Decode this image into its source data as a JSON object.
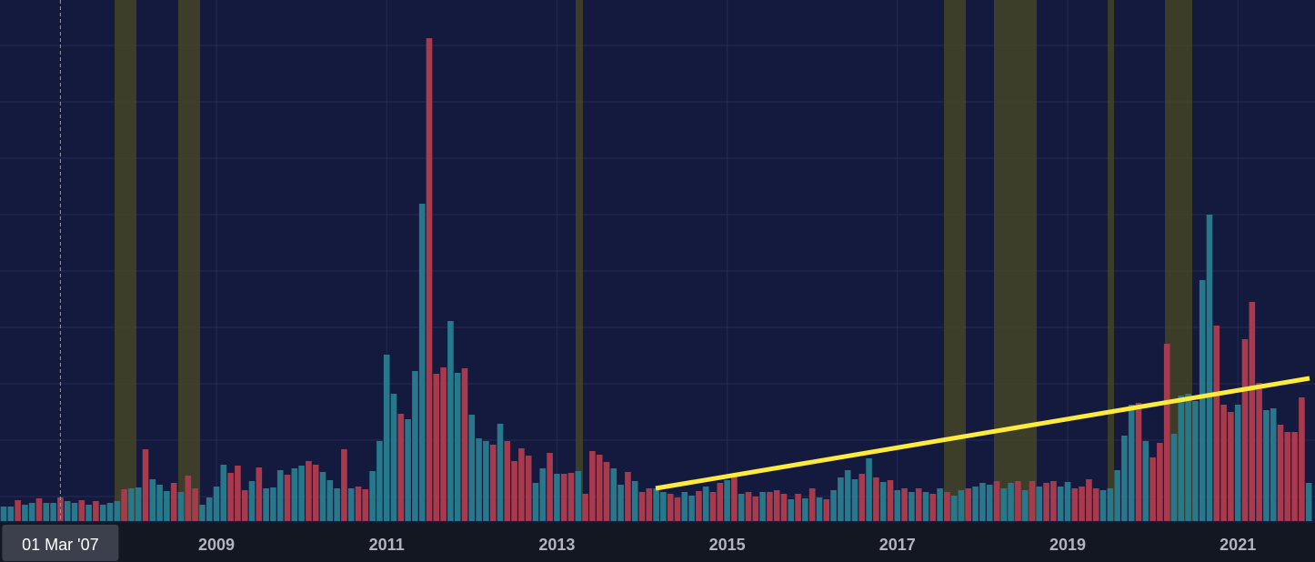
{
  "chart_data": {
    "type": "bar",
    "categories": [
      null,
      null,
      null,
      null,
      null,
      null,
      null,
      null,
      null,
      null,
      null,
      null,
      null,
      null,
      null,
      null,
      null,
      null,
      null,
      null,
      null,
      null,
      null,
      null,
      null,
      null,
      null,
      null,
      null,
      null,
      "2009",
      null,
      null,
      null,
      null,
      null,
      null,
      null,
      null,
      null,
      null,
      null,
      null,
      null,
      null,
      null,
      null,
      null,
      null,
      null,
      null,
      null,
      null,
      null,
      "2011",
      null,
      null,
      null,
      null,
      null,
      null,
      null,
      null,
      null,
      null,
      null,
      null,
      null,
      null,
      null,
      null,
      null,
      null,
      null,
      null,
      null,
      null,
      null,
      "2013",
      null,
      null,
      null,
      null,
      null,
      null,
      null,
      null,
      null,
      null,
      null,
      null,
      null,
      null,
      null,
      null,
      null,
      null,
      null,
      null,
      null,
      null,
      null,
      "2015",
      null,
      null,
      null,
      null,
      null,
      null,
      null,
      null,
      null,
      null,
      null,
      null,
      null,
      null,
      null,
      null,
      null,
      null,
      null,
      null,
      null,
      null,
      null,
      "2017",
      null,
      null,
      null,
      null,
      null,
      null,
      null,
      null,
      null,
      null,
      null,
      null,
      null,
      null,
      null,
      null,
      null,
      null,
      null,
      null,
      null,
      null,
      null,
      "2019",
      null,
      null,
      null,
      null,
      null,
      null,
      null,
      null,
      null,
      null,
      null,
      null,
      null,
      null,
      null,
      null,
      null,
      null,
      null,
      null,
      null,
      null,
      null,
      "2021",
      null,
      null,
      null,
      null,
      null,
      null,
      null,
      null,
      null,
      null
    ],
    "values": [
      16,
      16,
      23,
      18,
      20,
      25,
      20,
      20,
      26,
      22,
      20,
      23,
      18,
      22,
      18,
      20,
      22,
      35,
      36,
      37,
      79,
      46,
      40,
      33,
      42,
      32,
      50,
      36,
      18,
      26,
      38,
      62,
      53,
      61,
      34,
      44,
      59,
      36,
      37,
      56,
      51,
      58,
      61,
      66,
      62,
      54,
      45,
      36,
      79,
      36,
      38,
      35,
      55,
      88,
      183,
      140,
      118,
      112,
      165,
      349,
      531,
      162,
      169,
      220,
      163,
      168,
      117,
      91,
      88,
      84,
      107,
      88,
      66,
      80,
      72,
      42,
      58,
      75,
      52,
      52,
      53,
      55,
      30,
      77,
      73,
      65,
      58,
      40,
      54,
      44,
      32,
      36,
      36,
      32,
      30,
      26,
      32,
      28,
      33,
      38,
      32,
      42,
      45,
      49,
      30,
      32,
      27,
      32,
      32,
      34,
      30,
      24,
      30,
      25,
      36,
      26,
      24,
      34,
      48,
      56,
      46,
      52,
      69,
      48,
      43,
      45,
      34,
      36,
      32,
      36,
      32,
      30,
      36,
      32,
      28,
      34,
      36,
      38,
      42,
      40,
      44,
      36,
      42,
      44,
      34,
      44,
      38,
      42,
      44,
      38,
      43,
      36,
      38,
      46,
      36,
      34,
      36,
      56,
      94,
      128,
      130,
      88,
      70,
      86,
      195,
      96,
      138,
      140,
      132,
      265,
      337,
      215,
      128,
      120,
      128,
      200,
      241,
      152,
      122,
      124,
      106,
      98,
      98,
      136,
      42
    ],
    "colors": [
      "#26788a",
      "#26788a",
      "#a83a4e",
      "#26788a",
      "#26788a",
      "#a83a4e",
      "#26788a",
      "#26788a",
      "#a83a4e",
      "#26788a",
      "#26788a",
      "#a83a4e",
      "#26788a",
      "#a83a4e",
      "#26788a",
      "#26788a",
      "#26788a",
      "#a83a4e",
      "#26788a",
      "#26788a",
      "#a83a4e",
      "#26788a",
      "#26788a",
      "#26788a",
      "#a83a4e",
      "#26788a",
      "#a83a4e",
      "#a83a4e",
      "#26788a",
      "#26788a",
      "#26788a",
      "#26788a",
      "#a83a4e",
      "#a83a4e",
      "#a83a4e",
      "#26788a",
      "#a83a4e",
      "#26788a",
      "#26788a",
      "#26788a",
      "#a83a4e",
      "#26788a",
      "#26788a",
      "#a83a4e",
      "#a83a4e",
      "#26788a",
      "#26788a",
      "#26788a",
      "#a83a4e",
      "#26788a",
      "#a83a4e",
      "#a83a4e",
      "#26788a",
      "#26788a",
      "#26788a",
      "#26788a",
      "#a83a4e",
      "#26788a",
      "#26788a",
      "#26788a",
      "#a83a4e",
      "#a83a4e",
      "#a83a4e",
      "#26788a",
      "#26788a",
      "#a83a4e",
      "#26788a",
      "#26788a",
      "#26788a",
      "#a83a4e",
      "#26788a",
      "#a83a4e",
      "#a83a4e",
      "#a83a4e",
      "#a83a4e",
      "#26788a",
      "#26788a",
      "#a83a4e",
      "#26788a",
      "#a83a4e",
      "#a83a4e",
      "#26788a",
      "#a83a4e",
      "#a83a4e",
      "#a83a4e",
      "#a83a4e",
      "#26788a",
      "#26788a",
      "#a83a4e",
      "#26788a",
      "#a83a4e",
      "#a83a4e",
      "#26788a",
      "#26788a",
      "#a83a4e",
      "#a83a4e",
      "#26788a",
      "#26788a",
      "#a83a4e",
      "#26788a",
      "#a83a4e",
      "#a83a4e",
      "#26788a",
      "#a83a4e",
      "#26788a",
      "#a83a4e",
      "#a83a4e",
      "#26788a",
      "#a83a4e",
      "#a83a4e",
      "#a83a4e",
      "#26788a",
      "#a83a4e",
      "#26788a",
      "#a83a4e",
      "#26788a",
      "#a83a4e",
      "#26788a",
      "#26788a",
      "#26788a",
      "#26788a",
      "#a83a4e",
      "#26788a",
      "#a83a4e",
      "#26788a",
      "#a83a4e",
      "#26788a",
      "#a83a4e",
      "#26788a",
      "#a83a4e",
      "#26788a",
      "#a83a4e",
      "#26788a",
      "#a83a4e",
      "#26788a",
      "#26788a",
      "#a83a4e",
      "#26788a",
      "#26788a",
      "#26788a",
      "#a83a4e",
      "#26788a",
      "#26788a",
      "#a83a4e",
      "#26788a",
      "#a83a4e",
      "#26788a",
      "#a83a4e",
      "#a83a4e",
      "#26788a",
      "#26788a",
      "#a83a4e",
      "#a83a4e",
      "#a83a4e",
      "#a83a4e",
      "#26788a",
      "#26788a",
      "#26788a",
      "#26788a",
      "#26788a",
      "#a83a4e",
      "#26788a",
      "#a83a4e",
      "#a83a4e",
      "#a83a4e",
      "#26788a",
      "#26788a",
      "#26788a",
      "#26788a",
      "#26788a",
      "#26788a",
      "#a83a4e",
      "#a83a4e",
      "#a83a4e",
      "#26788a",
      "#a83a4e",
      "#a83a4e",
      "#a83a4e",
      "#26788a",
      "#26788a",
      "#a83a4e",
      "#a83a4e",
      "#a83a4e",
      "#a83a4e",
      "#26788a"
    ],
    "ylim": [
      0,
      573
    ],
    "crosshair": {
      "index": 8,
      "label": "01 Mar '07"
    }
  }
}
